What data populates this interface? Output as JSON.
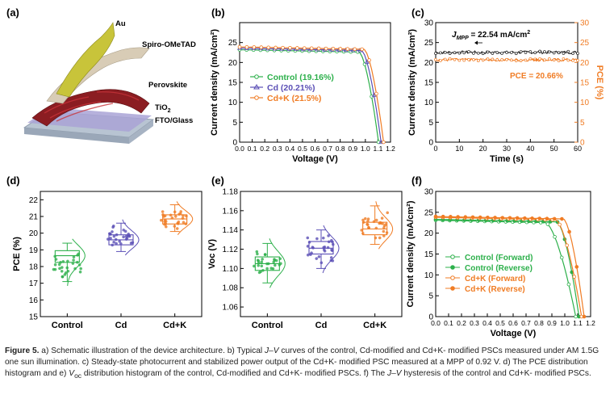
{
  "panels": {
    "a": {
      "label": "(a)",
      "layers": [
        "Au",
        "Spiro-OMeTAD",
        "Perovskite",
        "TiO",
        "FTO/Glass"
      ],
      "tio_sub": "2",
      "colors": {
        "au": "#c8c43a",
        "spiro": "#d8ccb6",
        "perovskite": "#8b1d22",
        "tio2": "#a9a3d6",
        "fto": "#b8c4d2"
      }
    },
    "b": {
      "label": "(b)"
    },
    "c": {
      "label": "(c)",
      "jmpp_prefix": "J",
      "jmpp_sub": "MPP",
      "jmpp_value": " = 22.54 mA/cm",
      "jmpp_sup": "2",
      "pce_annotation": "PCE = 20.66%"
    },
    "d": {
      "label": "(d)"
    },
    "e": {
      "label": "(e)"
    },
    "f": {
      "label": "(f)"
    }
  },
  "chart_data": [
    {
      "id": "b",
      "type": "line",
      "xlabel": "Voltage (V)",
      "ylabel": "Current density (mA/cm²)",
      "xlim": [
        0,
        1.2
      ],
      "ylim": [
        0,
        30
      ],
      "xticks": [
        "0.0",
        "0.1",
        "0.2",
        "0.3",
        "0.4",
        "0.5",
        "0.6",
        "0.7",
        "0.8",
        "0.9",
        "1.0",
        "1.1",
        "1.2"
      ],
      "yticks": [
        "0",
        "5",
        "10",
        "15",
        "20",
        "25"
      ],
      "legend": "bottom-left",
      "series": [
        {
          "name": "Control (19.16%)",
          "color": "#2db04b",
          "marker": "circle",
          "jsc": 23.2,
          "voc": 1.105,
          "knee": 0.95
        },
        {
          "name": "Cd (20.21%)",
          "color": "#5b4fb6",
          "marker": "triangle",
          "jsc": 23.6,
          "voc": 1.125,
          "knee": 0.97
        },
        {
          "name": "Cd+K (21.5%)",
          "color": "#f07c24",
          "marker": "circle",
          "jsc": 23.9,
          "voc": 1.145,
          "knee": 0.99
        }
      ]
    },
    {
      "id": "c",
      "type": "line",
      "xlabel": "Time (s)",
      "ylabel": "Current density (mA/cm²)",
      "y2label": "PCE (%)",
      "xlim": [
        0,
        60
      ],
      "ylim": [
        0,
        30
      ],
      "y2lim": [
        0,
        30
      ],
      "xticks": [
        "0",
        "10",
        "20",
        "30",
        "40",
        "50",
        "60"
      ],
      "yticks": [
        "0",
        "5",
        "10",
        "15",
        "20",
        "25",
        "30"
      ],
      "y2ticks": [
        "0",
        "5",
        "10",
        "15",
        "20",
        "25",
        "30"
      ],
      "series": [
        {
          "name": "J",
          "color": "#222222",
          "value": 22.54
        },
        {
          "name": "PCE",
          "color": "#f07c24",
          "value": 20.66
        }
      ]
    },
    {
      "id": "d",
      "type": "scatter",
      "ylabel": "PCE (%)",
      "ylim": [
        15,
        22.5
      ],
      "yticks": [
        "15",
        "16",
        "17",
        "18",
        "19",
        "20",
        "21",
        "22"
      ],
      "categories": [
        "Control",
        "Cd",
        "Cd+K"
      ],
      "boxes": [
        {
          "color": "#2db04b",
          "q1": 18.25,
          "median": 18.65,
          "q3": 18.95,
          "min": 17.1,
          "max": 19.4
        },
        {
          "color": "#5b4fb6",
          "q1": 19.3,
          "median": 19.6,
          "q3": 19.9,
          "min": 18.9,
          "max": 20.6
        },
        {
          "color": "#f07c24",
          "q1": 20.55,
          "median": 20.85,
          "q3": 21.1,
          "min": 20.1,
          "max": 21.7
        }
      ]
    },
    {
      "id": "e",
      "type": "scatter",
      "ylabel": "Voc (V)",
      "ylim": [
        1.05,
        1.18
      ],
      "yticks": [
        "1.06",
        "1.08",
        "1.10",
        "1.12",
        "1.14",
        "1.16",
        "1.18"
      ],
      "categories": [
        "Control",
        "Cd",
        "Cd+K"
      ],
      "boxes": [
        {
          "color": "#2db04b",
          "q1": 1.098,
          "median": 1.105,
          "q3": 1.112,
          "min": 1.085,
          "max": 1.126
        },
        {
          "color": "#5b4fb6",
          "q1": 1.115,
          "median": 1.121,
          "q3": 1.128,
          "min": 1.1,
          "max": 1.14
        },
        {
          "color": "#f07c24",
          "q1": 1.135,
          "median": 1.141,
          "q3": 1.148,
          "min": 1.125,
          "max": 1.165
        }
      ]
    },
    {
      "id": "f",
      "type": "line",
      "xlabel": "Voltage (V)",
      "ylabel": "Current density (mA/cm²)",
      "xlim": [
        0,
        1.2
      ],
      "ylim": [
        0,
        30
      ],
      "xticks": [
        "0.0",
        "0.1",
        "0.2",
        "0.3",
        "0.4",
        "0.5",
        "0.6",
        "0.7",
        "0.8",
        "0.9",
        "1.0",
        "1.1",
        "1.2"
      ],
      "yticks": [
        "0",
        "5",
        "10",
        "15",
        "20",
        "25",
        "30"
      ],
      "legend": "bottom-left",
      "series": [
        {
          "name": "Control   (Forward)",
          "color": "#2db04b",
          "marker": "open",
          "jsc": 23.1,
          "voc": 1.085,
          "knee": 0.85
        },
        {
          "name": "Control   (Reverse)",
          "color": "#2db04b",
          "marker": "filled",
          "jsc": 23.3,
          "voc": 1.11,
          "knee": 0.94
        },
        {
          "name": "Cd+K   (Forward)",
          "color": "#f07c24",
          "marker": "open",
          "jsc": 23.8,
          "voc": 1.13,
          "knee": 0.93
        },
        {
          "name": "Cd+K   (Reverse)",
          "color": "#f07c24",
          "marker": "filled",
          "jsc": 24.0,
          "voc": 1.15,
          "knee": 0.99
        }
      ]
    }
  ],
  "caption": {
    "figure": "Figure 5.",
    "t1": " a) Schematic illustration of the device architecture. b) Typical ",
    "jv": "J–V",
    "t2": " curves of the control, Cd-modified and Cd+K- modified PSCs measured under AM 1.5G one sun illumination. c) Steady-state photocurrent and stabilized power output of the Cd+K- modified PSC measured at a MPP of 0.92 V. d) The PCE distribution histogram and e) ",
    "voc_v": "V",
    "voc_sub": "oc",
    "t3": " distribution histogram of the control, Cd-modified and Cd+K- modified PSCs. f) The ",
    "jv2": "J–V",
    "t4": " hysteresis of the control and Cd+K- modified PSCs."
  }
}
